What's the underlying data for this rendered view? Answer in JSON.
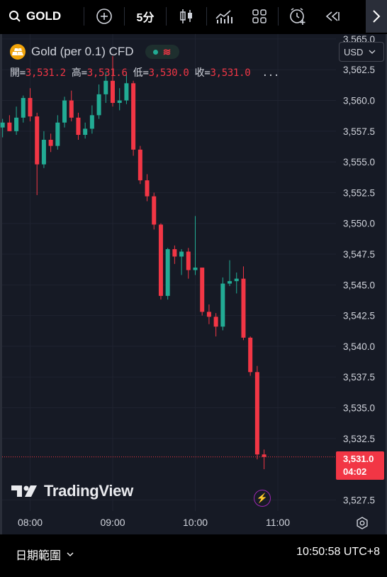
{
  "toolbar": {
    "symbol": "GOLD",
    "interval": "5分",
    "icons": [
      "search-icon",
      "plus-circle-icon",
      "candlestick-icon",
      "indicators-icon",
      "layout-grid-icon",
      "alert-clock-icon",
      "replay-icon",
      "chevron-right-icon"
    ]
  },
  "legend": {
    "instrument": "Gold (per 0.1) CFD",
    "status_icons": [
      "market-open-dot",
      "delayed-data-icon"
    ],
    "open_label": "開=",
    "open_value": "3,531.2",
    "high_label": "高=",
    "high_value": "3,531.6",
    "low_label": "低=",
    "low_value": "3,530.0",
    "close_label": "收=",
    "close_value": "3,531.0",
    "more": "..."
  },
  "currency": {
    "label": "USD"
  },
  "watermark": "TradingView",
  "last_price": {
    "value": "3,531.0",
    "countdown": "04:02"
  },
  "bottom": {
    "date_range": "日期範圍",
    "clock": "10:50:58 UTC+8"
  },
  "colors": {
    "up": "#22ab94",
    "down": "#f23645",
    "background": "#161a25",
    "grid": "#1f2330",
    "text": "#d1d4dc"
  },
  "chart_data": {
    "type": "candlestick",
    "title": "Gold (per 0.1) CFD",
    "interval": "5m",
    "x_tick_labels": [
      "08:00",
      "09:00",
      "10:00",
      "11:00"
    ],
    "y_tick_labels": [
      "3,565.0",
      "3,562.5",
      "3,560.0",
      "3,557.5",
      "3,555.0",
      "3,552.5",
      "3,550.0",
      "3,547.5",
      "3,545.0",
      "3,542.5",
      "3,540.0",
      "3,537.5",
      "3,535.0",
      "3,532.5",
      "3,527.5"
    ],
    "ylim": [
      3526.6,
      3565.4
    ],
    "grid": true,
    "last_value": 3531.0,
    "candles": [
      {
        "time": "07:40",
        "open": 3557.8,
        "high": 3558.5,
        "low": 3557.0,
        "close": 3558.2
      },
      {
        "time": "07:45",
        "open": 3558.2,
        "high": 3558.8,
        "low": 3557.5,
        "close": 3557.5
      },
      {
        "time": "07:50",
        "open": 3557.5,
        "high": 3559.5,
        "low": 3557.2,
        "close": 3558.6
      },
      {
        "time": "07:55",
        "open": 3558.6,
        "high": 3560.4,
        "low": 3558.2,
        "close": 3560.2
      },
      {
        "time": "08:00",
        "open": 3560.2,
        "high": 3561.0,
        "low": 3558.3,
        "close": 3558.7
      },
      {
        "time": "08:05",
        "open": 3558.7,
        "high": 3559.0,
        "low": 3552.3,
        "close": 3554.8
      },
      {
        "time": "08:10",
        "open": 3554.8,
        "high": 3557.5,
        "low": 3554.5,
        "close": 3556.8
      },
      {
        "time": "08:15",
        "open": 3556.8,
        "high": 3557.3,
        "low": 3555.8,
        "close": 3556.3
      },
      {
        "time": "08:20",
        "open": 3556.3,
        "high": 3558.8,
        "low": 3556.0,
        "close": 3558.2
      },
      {
        "time": "08:25",
        "open": 3558.2,
        "high": 3560.3,
        "low": 3557.8,
        "close": 3560.0
      },
      {
        "time": "08:30",
        "open": 3560.0,
        "high": 3560.8,
        "low": 3558.3,
        "close": 3558.6
      },
      {
        "time": "08:35",
        "open": 3558.6,
        "high": 3559.0,
        "low": 3556.8,
        "close": 3557.2
      },
      {
        "time": "08:40",
        "open": 3557.2,
        "high": 3558.2,
        "low": 3556.9,
        "close": 3557.7
      },
      {
        "time": "08:45",
        "open": 3557.7,
        "high": 3559.6,
        "low": 3557.3,
        "close": 3558.8
      },
      {
        "time": "08:50",
        "open": 3558.8,
        "high": 3561.3,
        "low": 3558.5,
        "close": 3560.5
      },
      {
        "time": "08:55",
        "open": 3560.5,
        "high": 3562.3,
        "low": 3559.8,
        "close": 3561.6
      },
      {
        "time": "09:00",
        "open": 3561.6,
        "high": 3563.6,
        "low": 3559.5,
        "close": 3559.8
      },
      {
        "time": "09:05",
        "open": 3559.8,
        "high": 3561.0,
        "low": 3559.2,
        "close": 3560.0
      },
      {
        "time": "09:10",
        "open": 3560.0,
        "high": 3562.3,
        "low": 3559.7,
        "close": 3561.4
      },
      {
        "time": "09:15",
        "open": 3561.4,
        "high": 3561.6,
        "low": 3555.5,
        "close": 3556.0
      },
      {
        "time": "09:20",
        "open": 3556.0,
        "high": 3556.3,
        "low": 3553.2,
        "close": 3553.5
      },
      {
        "time": "09:25",
        "open": 3553.5,
        "high": 3554.0,
        "low": 3551.8,
        "close": 3552.2
      },
      {
        "time": "09:30",
        "open": 3552.2,
        "high": 3552.5,
        "low": 3549.5,
        "close": 3549.9
      },
      {
        "time": "09:35",
        "open": 3549.9,
        "high": 3550.0,
        "low": 3543.8,
        "close": 3544.1
      },
      {
        "time": "09:40",
        "open": 3544.1,
        "high": 3548.0,
        "low": 3543.8,
        "close": 3547.9
      },
      {
        "time": "09:45",
        "open": 3547.9,
        "high": 3548.2,
        "low": 3546.7,
        "close": 3547.3
      },
      {
        "time": "09:50",
        "open": 3547.3,
        "high": 3547.9,
        "low": 3545.8,
        "close": 3547.7
      },
      {
        "time": "09:55",
        "open": 3547.7,
        "high": 3548.0,
        "low": 3545.5,
        "close": 3546.2
      },
      {
        "time": "10:00",
        "open": 3546.2,
        "high": 3550.6,
        "low": 3545.8,
        "close": 3546.4
      },
      {
        "time": "10:05",
        "open": 3546.4,
        "high": 3546.4,
        "low": 3542.5,
        "close": 3542.8
      },
      {
        "time": "10:10",
        "open": 3542.8,
        "high": 3543.4,
        "low": 3541.8,
        "close": 3542.4
      },
      {
        "time": "10:15",
        "open": 3542.4,
        "high": 3542.7,
        "low": 3540.8,
        "close": 3541.6
      },
      {
        "time": "10:20",
        "open": 3541.6,
        "high": 3545.6,
        "low": 3541.3,
        "close": 3545.1
      },
      {
        "time": "10:25",
        "open": 3545.1,
        "high": 3547.0,
        "low": 3544.9,
        "close": 3545.3
      },
      {
        "time": "10:30",
        "open": 3545.3,
        "high": 3546.0,
        "low": 3544.3,
        "close": 3545.5
      },
      {
        "time": "10:35",
        "open": 3545.5,
        "high": 3546.5,
        "low": 3540.5,
        "close": 3540.7
      },
      {
        "time": "10:40",
        "open": 3540.7,
        "high": 3540.8,
        "low": 3537.6,
        "close": 3537.9
      },
      {
        "time": "10:45",
        "open": 3537.9,
        "high": 3538.4,
        "low": 3530.8,
        "close": 3531.2
      },
      {
        "time": "10:50",
        "open": 3531.2,
        "high": 3531.6,
        "low": 3530.0,
        "close": 3531.0
      }
    ]
  }
}
